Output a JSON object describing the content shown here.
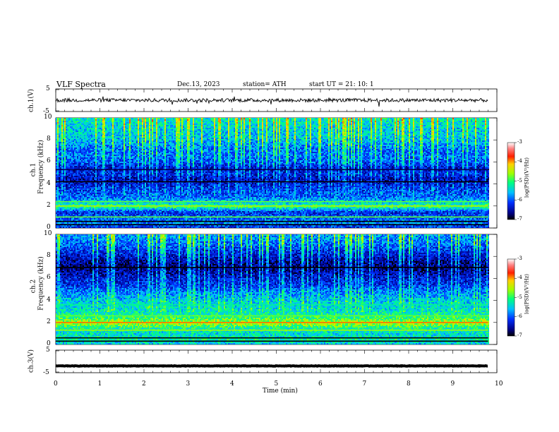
{
  "header": {
    "title": "VLF  Spectra",
    "date": "Dec.13, 2023",
    "station": "station= ATH",
    "start": "start  UT  =    21: 10: 1"
  },
  "panels": {
    "ch1_waveform": {
      "ylabel": "ch.1(V)",
      "ticks": [
        "5",
        "-5"
      ]
    },
    "ch1_spec": {
      "ylabel": "ch.1\nFrequency  (kHz)"
    },
    "ch2_spec": {
      "ylabel": "ch.2\nFrequency  (kHz)"
    },
    "ch3_waveform": {
      "ylabel": "ch.3(V)",
      "ticks": [
        "5",
        "-5"
      ]
    }
  },
  "colorbar": {
    "label": "log(PSD)(V²/Hz)",
    "ticks": [
      "-3",
      "-4",
      "-5",
      "-6",
      "-7"
    ],
    "colors": [
      "#000000",
      "#0000cc",
      "#0080ff",
      "#00e0ff",
      "#00ff60",
      "#c0ff00",
      "#ffc000",
      "#ff2000",
      "#ffffff"
    ]
  },
  "chart_data": [
    {
      "type": "line",
      "title": "ch.1(V)",
      "xlabel": "Time  (min)",
      "ylabel": "ch.1(V)",
      "xlim": [
        0,
        10
      ],
      "ylim": [
        -5,
        5
      ],
      "description_values": {
        "approx_mean": 0,
        "approx_amplitude": 0.8,
        "data_end_min": 9.8
      }
    },
    {
      "type": "heatmap",
      "title": "ch.1 spectrogram",
      "xlabel": "Time  (min)",
      "ylabel": "Frequency  (kHz)",
      "xlim": [
        0,
        10
      ],
      "ylim": [
        0,
        10
      ],
      "zlim": [
        -7,
        -3
      ],
      "zlabel": "log(PSD)(V²/Hz)",
      "data_end_min": 9.8,
      "freq_profile_kHz": [
        0,
        0.5,
        1,
        1.5,
        2,
        2.5,
        3,
        3.5,
        4,
        4.5,
        5,
        5.5,
        6,
        6.5,
        7,
        7.5,
        8,
        8.5,
        9,
        9.5,
        10
      ],
      "freq_profile_logpsd": [
        -6.3,
        -5.8,
        -6.0,
        -6.2,
        -5.0,
        -5.6,
        -6.0,
        -6.1,
        -6.3,
        -6.5,
        -6.2,
        -6.4,
        -6.0,
        -5.9,
        -5.9,
        -5.8,
        -5.6,
        -5.5,
        -5.5,
        -5.4,
        -5.3
      ]
    },
    {
      "type": "heatmap",
      "title": "ch.2 spectrogram",
      "xlabel": "Time  (min)",
      "ylabel": "Frequency  (kHz)",
      "xlim": [
        0,
        10
      ],
      "ylim": [
        0,
        10
      ],
      "zlim": [
        -7,
        -3
      ],
      "zlabel": "log(PSD)(V²/Hz)",
      "data_end_min": 9.8,
      "freq_profile_kHz": [
        0,
        0.5,
        1,
        1.5,
        2,
        2.5,
        3,
        3.5,
        4,
        4.5,
        5,
        5.5,
        6,
        6.5,
        7,
        7.5,
        8,
        8.5,
        9,
        9.5,
        10
      ],
      "freq_profile_logpsd": [
        -5.6,
        -5.2,
        -5.4,
        -5.2,
        -4.5,
        -5.0,
        -5.3,
        -5.4,
        -5.5,
        -5.7,
        -5.9,
        -6.2,
        -6.3,
        -6.5,
        -6.7,
        -6.6,
        -6.4,
        -6.2,
        -6.0,
        -5.8,
        -5.7
      ]
    },
    {
      "type": "line",
      "title": "ch.3(V)",
      "xlabel": "Time  (min)",
      "ylabel": "ch.3(V)",
      "xlim": [
        0,
        10
      ],
      "ylim": [
        -5,
        5
      ],
      "description_values": {
        "approx_mean": -2,
        "approx_amplitude": 0.1,
        "data_end_min": 9.8
      }
    }
  ],
  "xaxis": {
    "ticks": [
      "0",
      "1",
      "2",
      "3",
      "4",
      "5",
      "6",
      "7",
      "8",
      "9",
      "10"
    ],
    "label": "Time  (min)"
  },
  "spec_yticks": [
    "10",
    "8",
    "6",
    "4",
    "2",
    "0"
  ]
}
